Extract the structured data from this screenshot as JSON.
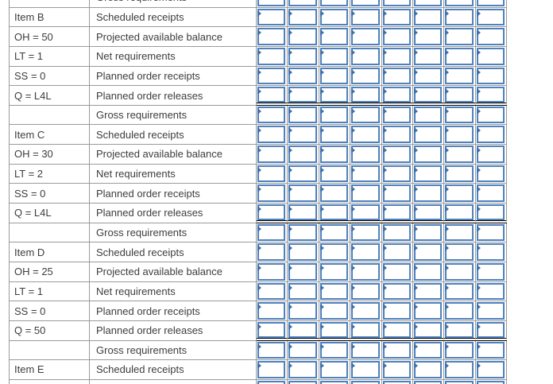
{
  "app": {
    "description": "MRP planning worksheet grid with fillable answer cells",
    "period_columns": 8,
    "cell_value": ""
  },
  "colors": {
    "gridline": "#9a9a9a",
    "input_border": "#4f81bd",
    "marker_fill": "#3e70ab",
    "separator_line": "#000000",
    "text": "#3d3d3d",
    "cell_background": "#ffffff"
  },
  "mrp_row_labels": [
    "Gross requirements",
    "Scheduled receipts",
    "Projected available balance",
    "Net requirements",
    "Planned order receipts",
    "Planned order releases"
  ],
  "items": [
    {
      "name": "Item B",
      "on_hand": "OH = 50",
      "lead_time": "LT = 1",
      "safety_stock": "SS = 0",
      "lot_size": "Q = L4L"
    },
    {
      "name": "Item C",
      "on_hand": "OH = 30",
      "lead_time": "LT = 2",
      "safety_stock": "SS = 0",
      "lot_size": "Q = L4L"
    },
    {
      "name": "Item D",
      "on_hand": "OH = 25",
      "lead_time": "LT = 1",
      "safety_stock": "SS = 0",
      "lot_size": "Q = 50"
    },
    {
      "name": "Item E"
    }
  ],
  "rows": [
    {
      "item_info": "",
      "row_label": "Gross requirements",
      "partial_top": true
    },
    {
      "item_info": "Item B",
      "row_label": "Scheduled receipts"
    },
    {
      "item_info": "OH = 50",
      "row_label": "Projected available balance"
    },
    {
      "item_info": "LT = 1",
      "row_label": "Net requirements"
    },
    {
      "item_info": "SS = 0",
      "row_label": "Planned order receipts"
    },
    {
      "item_info": "Q = L4L",
      "row_label": "Planned order releases",
      "separator_after": true
    },
    {
      "item_info": "",
      "row_label": "Gross requirements"
    },
    {
      "item_info": "Item C",
      "row_label": "Scheduled receipts"
    },
    {
      "item_info": "OH = 30",
      "row_label": "Projected available balance"
    },
    {
      "item_info": "LT = 2",
      "row_label": "Net requirements"
    },
    {
      "item_info": "SS = 0",
      "row_label": "Planned order receipts"
    },
    {
      "item_info": "Q = L4L",
      "row_label": "Planned order releases",
      "separator_after": true
    },
    {
      "item_info": "",
      "row_label": "Gross requirements"
    },
    {
      "item_info": "Item D",
      "row_label": "Scheduled receipts"
    },
    {
      "item_info": "OH = 25",
      "row_label": "Projected available balance"
    },
    {
      "item_info": "LT = 1",
      "row_label": "Net requirements"
    },
    {
      "item_info": "SS = 0",
      "row_label": "Planned order receipts"
    },
    {
      "item_info": "Q = 50",
      "row_label": "Planned order releases",
      "separator_after": true
    },
    {
      "item_info": "",
      "row_label": "Gross requirements"
    },
    {
      "item_info": "Item E",
      "row_label": "Scheduled receipts"
    },
    {
      "item_info": "",
      "row_label": "",
      "partial_bottom": true
    }
  ]
}
